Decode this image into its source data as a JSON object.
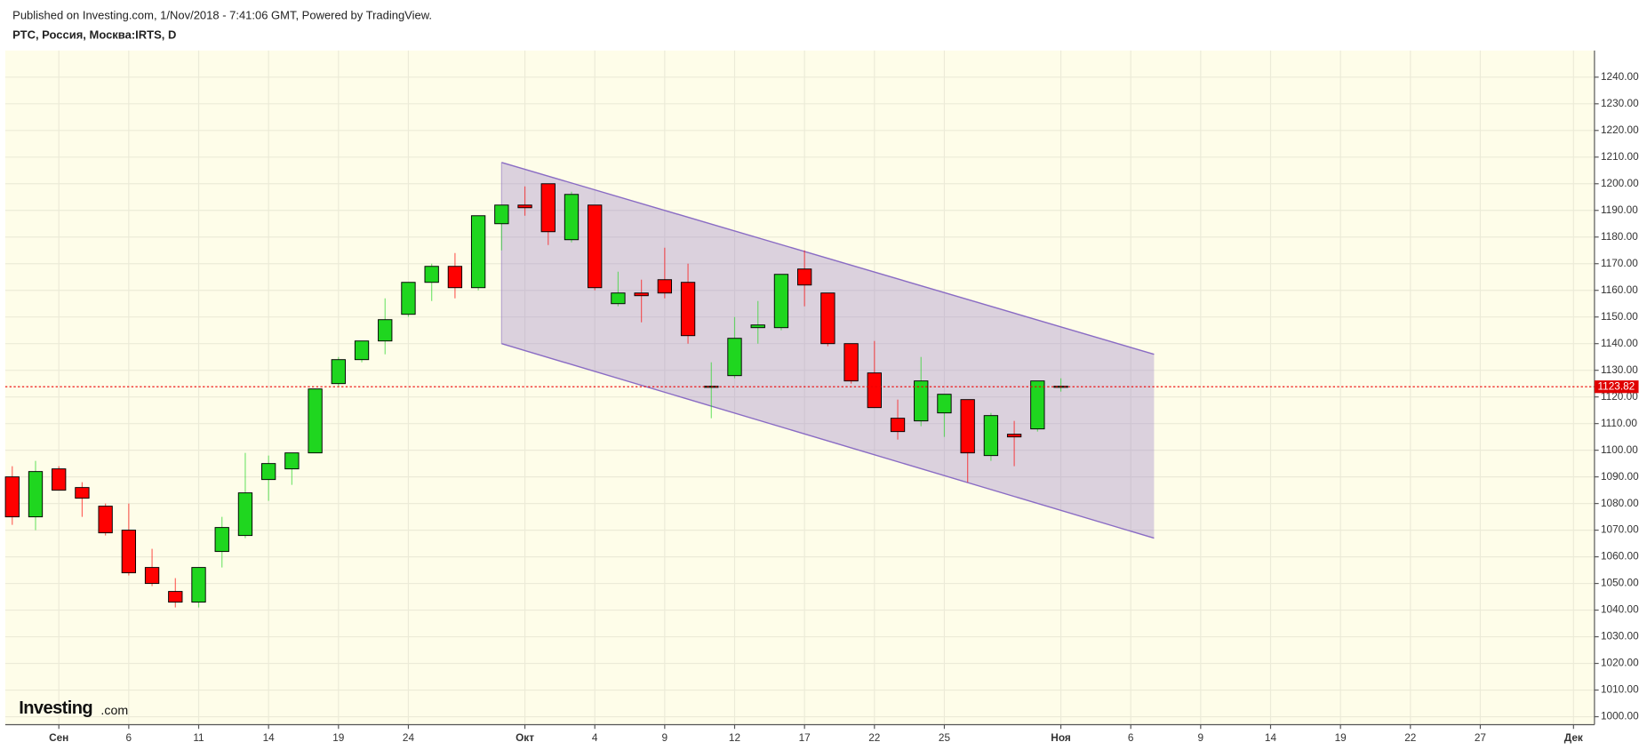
{
  "header": {
    "published": "Published on Investing.com, 1/Nov/2018 - 7:41:06 GMT, Powered by TradingView.",
    "symbol": "РТС, Россия, Москва:IRTS, D"
  },
  "chart_data": {
    "type": "candlestick",
    "watermark": [
      "Investing",
      ".com"
    ],
    "x": [
      0,
      1,
      2,
      3,
      4,
      5,
      6,
      7,
      8,
      9,
      10,
      11,
      12,
      13,
      14,
      15,
      16,
      17,
      18,
      19,
      20,
      21,
      22,
      23,
      24,
      25,
      26,
      27,
      28,
      29,
      30,
      31,
      32,
      33,
      34,
      35,
      36,
      37,
      38,
      39,
      40,
      41,
      42,
      43,
      44,
      45
    ],
    "open": [
      1090,
      1075,
      1093,
      1086,
      1079,
      1070,
      1056,
      1047,
      1043,
      1062,
      1068,
      1089,
      1093,
      1099,
      1125,
      1134,
      1141,
      1151,
      1163,
      1169,
      1161,
      1185,
      1192,
      1200,
      1179,
      1192,
      1155,
      1159,
      1164,
      1163,
      1124,
      1128,
      1146,
      1146,
      1168,
      1159,
      1140,
      1129,
      1112,
      1111,
      1114,
      1119,
      1098,
      1106,
      1108,
      1124
    ],
    "high": [
      1094,
      1096,
      1094,
      1088,
      1080,
      1080,
      1063,
      1052,
      1056,
      1075,
      1099,
      1098,
      1099,
      1123,
      1135,
      1141,
      1157,
      1163,
      1170,
      1174,
      1188,
      1192,
      1199,
      1200,
      1197,
      1192,
      1167,
      1164,
      1176,
      1170,
      1133,
      1150,
      1156,
      1166,
      1175,
      1159,
      1140,
      1141,
      1119,
      1135,
      1121,
      1119,
      1114,
      1111,
      1126,
      1127
    ],
    "low": [
      1072,
      1070,
      1085,
      1075,
      1068,
      1053,
      1049,
      1041,
      1041,
      1056,
      1067,
      1081,
      1087,
      1099,
      1124,
      1133,
      1136,
      1150,
      1156,
      1157,
      1160,
      1175,
      1188,
      1177,
      1178,
      1160,
      1154,
      1148,
      1157,
      1140,
      1112,
      1127,
      1140,
      1145,
      1154,
      1139,
      1125,
      1116,
      1104,
      1109,
      1105,
      1088,
      1096,
      1094,
      1107,
      1122
    ],
    "close": [
      1075,
      1092,
      1085,
      1082,
      1069,
      1054,
      1050,
      1043,
      1056,
      1071,
      1084,
      1095,
      1099,
      1123,
      1134,
      1141,
      1149,
      1163,
      1169,
      1161,
      1188,
      1192,
      1191,
      1182,
      1196,
      1161,
      1159,
      1158,
      1159,
      1143,
      1124,
      1142,
      1147,
      1166,
      1162,
      1140,
      1126,
      1116,
      1107,
      1126,
      1121,
      1099,
      1113,
      1105,
      1126,
      1124
    ],
    "up_color": "#1fd61f",
    "down_color": "#ff0000",
    "channel": {
      "x": [
        21,
        49
      ],
      "upper": [
        1208,
        1136
      ],
      "lower": [
        1140,
        1067
      ],
      "color": "#8a6cc4"
    },
    "last_price": 1123.82,
    "xlim": [
      -0.3,
      67.9
    ],
    "ylim": [
      997,
      1250
    ],
    "xticks": [
      {
        "value": 2,
        "label": "Сен"
      },
      {
        "value": 5,
        "label": "6"
      },
      {
        "value": 8,
        "label": "11"
      },
      {
        "value": 11,
        "label": "14"
      },
      {
        "value": 14,
        "label": "19"
      },
      {
        "value": 17,
        "label": "24"
      },
      {
        "value": 22,
        "label": "Окт"
      },
      {
        "value": 25,
        "label": "4"
      },
      {
        "value": 28,
        "label": "9"
      },
      {
        "value": 31,
        "label": "12"
      },
      {
        "value": 34,
        "label": "17"
      },
      {
        "value": 37,
        "label": "22"
      },
      {
        "value": 40,
        "label": "25"
      },
      {
        "value": 45,
        "label": "Ноя"
      },
      {
        "value": 48,
        "label": "6"
      },
      {
        "value": 51,
        "label": "9"
      },
      {
        "value": 54,
        "label": "14"
      },
      {
        "value": 57,
        "label": "19"
      },
      {
        "value": 60,
        "label": "22"
      },
      {
        "value": 63,
        "label": "27"
      },
      {
        "value": 67,
        "label": "Дек"
      }
    ],
    "yticks": [
      {
        "value": 1000,
        "label": "1000.00"
      },
      {
        "value": 1010,
        "label": "1010.00"
      },
      {
        "value": 1020,
        "label": "1020.00"
      },
      {
        "value": 1030,
        "label": "1030.00"
      },
      {
        "value": 1040,
        "label": "1040.00"
      },
      {
        "value": 1050,
        "label": "1050.00"
      },
      {
        "value": 1060,
        "label": "1060.00"
      },
      {
        "value": 1070,
        "label": "1070.00"
      },
      {
        "value": 1080,
        "label": "1080.00"
      },
      {
        "value": 1090,
        "label": "1090.00"
      },
      {
        "value": 1100,
        "label": "1100.00"
      },
      {
        "value": 1110,
        "label": "1110.00"
      },
      {
        "value": 1120,
        "label": "1120.00"
      },
      {
        "value": 1130,
        "label": "1130.00"
      },
      {
        "value": 1140,
        "label": "1140.00"
      },
      {
        "value": 1150,
        "label": "1150.00"
      },
      {
        "value": 1160,
        "label": "1160.00"
      },
      {
        "value": 1170,
        "label": "1170.00"
      },
      {
        "value": 1180,
        "label": "1180.00"
      },
      {
        "value": 1190,
        "label": "1190.00"
      },
      {
        "value": 1200,
        "label": "1200.00"
      },
      {
        "value": 1210,
        "label": "1210.00"
      },
      {
        "value": 1220,
        "label": "1220.00"
      },
      {
        "value": 1230,
        "label": "1230.00"
      },
      {
        "value": 1240,
        "label": "1240.00"
      }
    ],
    "grid": true
  }
}
